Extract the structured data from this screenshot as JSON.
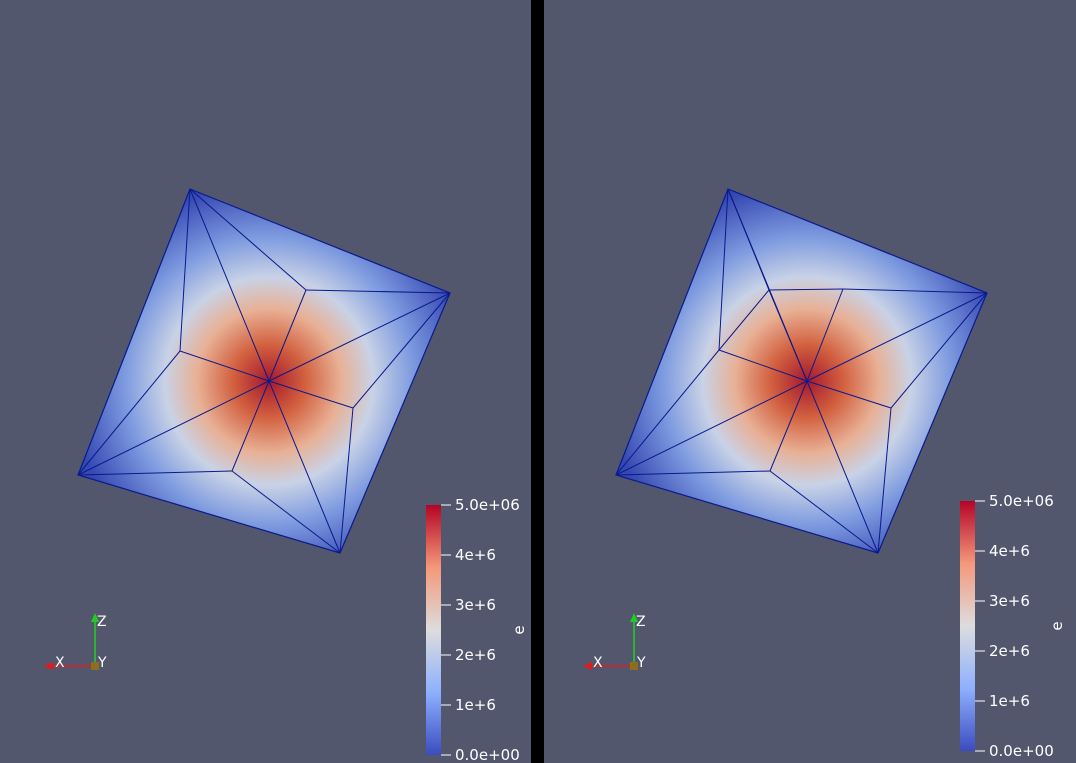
{
  "colors": {
    "background": "#52576e",
    "divider": "#000000",
    "mesh_edges": "#0a1a8c",
    "colormap_low": "#3b4cc0",
    "colormap_mid": "#dddddd",
    "colormap_high": "#b40426",
    "axis_x": "#e31a1c",
    "axis_y": "#8b6f1f",
    "axis_z": "#22cc22"
  },
  "views": [
    {
      "colorbar": {
        "title": "e",
        "colormap": "cool-to-warm",
        "range": [
          0,
          5000000
        ],
        "ticks": [
          "5.0e+06",
          "4e+6",
          "3e+6",
          "2e+6",
          "1e+6",
          "0.0e+00"
        ]
      },
      "axes_labels": {
        "x": "X",
        "y": "Y",
        "z": "Z"
      }
    },
    {
      "colorbar": {
        "title": "e",
        "colormap": "cool-to-warm",
        "range": [
          0,
          5000000
        ],
        "ticks": [
          "5.0e+06",
          "4e+6",
          "3e+6",
          "2e+6",
          "1e+6",
          "0.0e+00"
        ]
      },
      "axes_labels": {
        "x": "X",
        "y": "Y",
        "z": "Z"
      }
    }
  ]
}
